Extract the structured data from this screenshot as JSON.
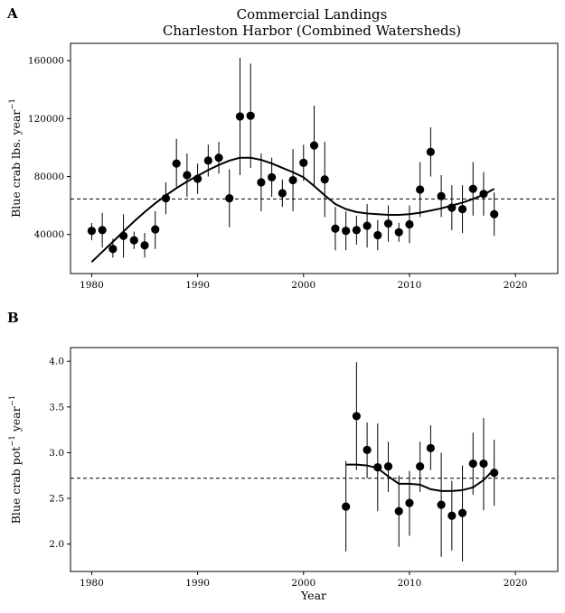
{
  "figure": {
    "title_line1": "Commercial Landings",
    "title_line2": "Charleston Harbor (Combined Watersheds)",
    "shared_xlabel": "Year"
  },
  "chart_data": [
    {
      "type": "scatter",
      "panel_label": "A",
      "ylabel_main": "Blue crab lbs. year",
      "ylabel_exponent": "−1",
      "xlabel": "",
      "xlim": [
        1978,
        2024
      ],
      "ylim": [
        13000,
        172000
      ],
      "x_ticks": [
        1980,
        1990,
        2000,
        2010,
        2020
      ],
      "x_tick_labels": [
        "1980",
        "1990",
        "2000",
        "2010",
        "2020"
      ],
      "y_ticks": [
        40000,
        80000,
        120000,
        160000
      ],
      "y_tick_labels": [
        "40000",
        "80000",
        "120000",
        "160000"
      ],
      "grid": false,
      "reference_line": {
        "y": 64500,
        "style": "dashed"
      },
      "points": [
        {
          "x": 1980,
          "y": 42500,
          "ylo": 36000,
          "yhi": 48000
        },
        {
          "x": 1981,
          "y": 43000,
          "ylo": 31000,
          "yhi": 55000
        },
        {
          "x": 1982,
          "y": 30000,
          "ylo": 24000,
          "yhi": 37000
        },
        {
          "x": 1983,
          "y": 39000,
          "ylo": 24000,
          "yhi": 54000
        },
        {
          "x": 1984,
          "y": 36000,
          "ylo": 30000,
          "yhi": 42000
        },
        {
          "x": 1985,
          "y": 32500,
          "ylo": 24000,
          "yhi": 41000
        },
        {
          "x": 1986,
          "y": 43500,
          "ylo": 30000,
          "yhi": 56000
        },
        {
          "x": 1987,
          "y": 65000,
          "ylo": 54000,
          "yhi": 76000
        },
        {
          "x": 1988,
          "y": 89000,
          "ylo": 73000,
          "yhi": 106000
        },
        {
          "x": 1989,
          "y": 81000,
          "ylo": 66000,
          "yhi": 96000
        },
        {
          "x": 1990,
          "y": 78500,
          "ylo": 68000,
          "yhi": 89000
        },
        {
          "x": 1991,
          "y": 91000,
          "ylo": 80000,
          "yhi": 102000
        },
        {
          "x": 1992,
          "y": 93000,
          "ylo": 82000,
          "yhi": 104000
        },
        {
          "x": 1993,
          "y": 65000,
          "ylo": 45000,
          "yhi": 85000
        },
        {
          "x": 1994,
          "y": 121500,
          "ylo": 81000,
          "yhi": 162000
        },
        {
          "x": 1995,
          "y": 122000,
          "ylo": 86000,
          "yhi": 158000
        },
        {
          "x": 1996,
          "y": 76000,
          "ylo": 56000,
          "yhi": 96000
        },
        {
          "x": 1997,
          "y": 79500,
          "ylo": 66000,
          "yhi": 93000
        },
        {
          "x": 1998,
          "y": 68500,
          "ylo": 59000,
          "yhi": 78000
        },
        {
          "x": 1999,
          "y": 77500,
          "ylo": 56000,
          "yhi": 99000
        },
        {
          "x": 2000,
          "y": 89500,
          "ylo": 77000,
          "yhi": 102000
        },
        {
          "x": 2001,
          "y": 101500,
          "ylo": 74000,
          "yhi": 129000
        },
        {
          "x": 2002,
          "y": 78000,
          "ylo": 52000,
          "yhi": 104000
        },
        {
          "x": 2003,
          "y": 44000,
          "ylo": 29000,
          "yhi": 59000
        },
        {
          "x": 2004,
          "y": 42500,
          "ylo": 29000,
          "yhi": 56000
        },
        {
          "x": 2005,
          "y": 43000,
          "ylo": 33000,
          "yhi": 53000
        },
        {
          "x": 2006,
          "y": 46000,
          "ylo": 31000,
          "yhi": 61000
        },
        {
          "x": 2007,
          "y": 39500,
          "ylo": 29000,
          "yhi": 50000
        },
        {
          "x": 2008,
          "y": 47500,
          "ylo": 35000,
          "yhi": 60000
        },
        {
          "x": 2009,
          "y": 41500,
          "ylo": 35000,
          "yhi": 48000
        },
        {
          "x": 2010,
          "y": 47000,
          "ylo": 34000,
          "yhi": 60000
        },
        {
          "x": 2011,
          "y": 71000,
          "ylo": 52000,
          "yhi": 90000
        },
        {
          "x": 2012,
          "y": 97000,
          "ylo": 80000,
          "yhi": 114000
        },
        {
          "x": 2013,
          "y": 66500,
          "ylo": 52000,
          "yhi": 81000
        },
        {
          "x": 2014,
          "y": 58500,
          "ylo": 43000,
          "yhi": 74000
        },
        {
          "x": 2015,
          "y": 57500,
          "ylo": 41000,
          "yhi": 74000
        },
        {
          "x": 2016,
          "y": 71500,
          "ylo": 53000,
          "yhi": 90000
        },
        {
          "x": 2017,
          "y": 68000,
          "ylo": 53000,
          "yhi": 83000
        },
        {
          "x": 2018,
          "y": 54000,
          "ylo": 39000,
          "yhi": 69000
        }
      ],
      "smooth_line": [
        {
          "x": 1980,
          "y": 21000
        },
        {
          "x": 1981,
          "y": 28000
        },
        {
          "x": 1982,
          "y": 35000
        },
        {
          "x": 1983,
          "y": 42000
        },
        {
          "x": 1984,
          "y": 49000
        },
        {
          "x": 1985,
          "y": 55500
        },
        {
          "x": 1986,
          "y": 61500
        },
        {
          "x": 1987,
          "y": 67000
        },
        {
          "x": 1988,
          "y": 72000
        },
        {
          "x": 1989,
          "y": 76500
        },
        {
          "x": 1990,
          "y": 80500
        },
        {
          "x": 1991,
          "y": 84500
        },
        {
          "x": 1992,
          "y": 88000
        },
        {
          "x": 1993,
          "y": 91000
        },
        {
          "x": 1994,
          "y": 93000
        },
        {
          "x": 1995,
          "y": 93000
        },
        {
          "x": 1996,
          "y": 91500
        },
        {
          "x": 1997,
          "y": 89000
        },
        {
          "x": 1998,
          "y": 86000
        },
        {
          "x": 1999,
          "y": 83000
        },
        {
          "x": 2000,
          "y": 79500
        },
        {
          "x": 2001,
          "y": 73500
        },
        {
          "x": 2002,
          "y": 67000
        },
        {
          "x": 2003,
          "y": 61000
        },
        {
          "x": 2004,
          "y": 57500
        },
        {
          "x": 2005,
          "y": 55500
        },
        {
          "x": 2006,
          "y": 54500
        },
        {
          "x": 2007,
          "y": 54000
        },
        {
          "x": 2008,
          "y": 53500
        },
        {
          "x": 2009,
          "y": 53500
        },
        {
          "x": 2010,
          "y": 54000
        },
        {
          "x": 2011,
          "y": 55000
        },
        {
          "x": 2012,
          "y": 56500
        },
        {
          "x": 2013,
          "y": 58000
        },
        {
          "x": 2014,
          "y": 60000
        },
        {
          "x": 2015,
          "y": 62000
        },
        {
          "x": 2016,
          "y": 64500
        },
        {
          "x": 2017,
          "y": 67500
        },
        {
          "x": 2018,
          "y": 71500
        }
      ]
    },
    {
      "type": "scatter",
      "panel_label": "B",
      "ylabel_main": "Blue crab pot",
      "ylabel_exponent_1": "−1",
      "ylabel_middle": " year",
      "ylabel_exponent_2": "−1",
      "xlabel": "Year",
      "xlim": [
        1978,
        2024
      ],
      "ylim": [
        1.7,
        4.15
      ],
      "x_ticks": [
        1980,
        1990,
        2000,
        2010,
        2020
      ],
      "x_tick_labels": [
        "1980",
        "1990",
        "2000",
        "2010",
        "2020"
      ],
      "y_ticks": [
        2.0,
        2.5,
        3.0,
        3.5,
        4.0
      ],
      "y_tick_labels": [
        "2.0",
        "2.5",
        "3.0",
        "3.5",
        "4.0"
      ],
      "grid": false,
      "reference_line": {
        "y": 2.72,
        "style": "dashed"
      },
      "points": [
        {
          "x": 2004,
          "y": 2.41,
          "ylo": 1.92,
          "yhi": 2.91
        },
        {
          "x": 2005,
          "y": 3.4,
          "ylo": 2.81,
          "yhi": 3.99
        },
        {
          "x": 2006,
          "y": 3.03,
          "ylo": 2.72,
          "yhi": 3.33
        },
        {
          "x": 2007,
          "y": 2.84,
          "ylo": 2.36,
          "yhi": 3.32
        },
        {
          "x": 2008,
          "y": 2.85,
          "ylo": 2.57,
          "yhi": 3.12
        },
        {
          "x": 2009,
          "y": 2.36,
          "ylo": 1.97,
          "yhi": 2.75
        },
        {
          "x": 2010,
          "y": 2.45,
          "ylo": 2.09,
          "yhi": 2.8
        },
        {
          "x": 2011,
          "y": 2.85,
          "ylo": 2.57,
          "yhi": 3.12
        },
        {
          "x": 2012,
          "y": 3.05,
          "ylo": 2.81,
          "yhi": 3.3
        },
        {
          "x": 2013,
          "y": 2.43,
          "ylo": 1.86,
          "yhi": 3.0
        },
        {
          "x": 2014,
          "y": 2.31,
          "ylo": 1.93,
          "yhi": 2.69
        },
        {
          "x": 2015,
          "y": 2.34,
          "ylo": 1.81,
          "yhi": 2.86
        },
        {
          "x": 2016,
          "y": 2.88,
          "ylo": 2.54,
          "yhi": 3.22
        },
        {
          "x": 2017,
          "y": 2.88,
          "ylo": 2.37,
          "yhi": 3.38
        },
        {
          "x": 2018,
          "y": 2.78,
          "ylo": 2.42,
          "yhi": 3.14
        }
      ],
      "smooth_line": [
        {
          "x": 2004,
          "y": 2.87
        },
        {
          "x": 2005,
          "y": 2.87
        },
        {
          "x": 2006,
          "y": 2.86
        },
        {
          "x": 2007,
          "y": 2.83
        },
        {
          "x": 2008,
          "y": 2.74
        },
        {
          "x": 2009,
          "y": 2.66
        },
        {
          "x": 2010,
          "y": 2.66
        },
        {
          "x": 2011,
          "y": 2.65
        },
        {
          "x": 2012,
          "y": 2.6
        },
        {
          "x": 2013,
          "y": 2.58
        },
        {
          "x": 2014,
          "y": 2.58
        },
        {
          "x": 2015,
          "y": 2.59
        },
        {
          "x": 2016,
          "y": 2.62
        },
        {
          "x": 2017,
          "y": 2.7
        },
        {
          "x": 2018,
          "y": 2.82
        }
      ]
    }
  ]
}
